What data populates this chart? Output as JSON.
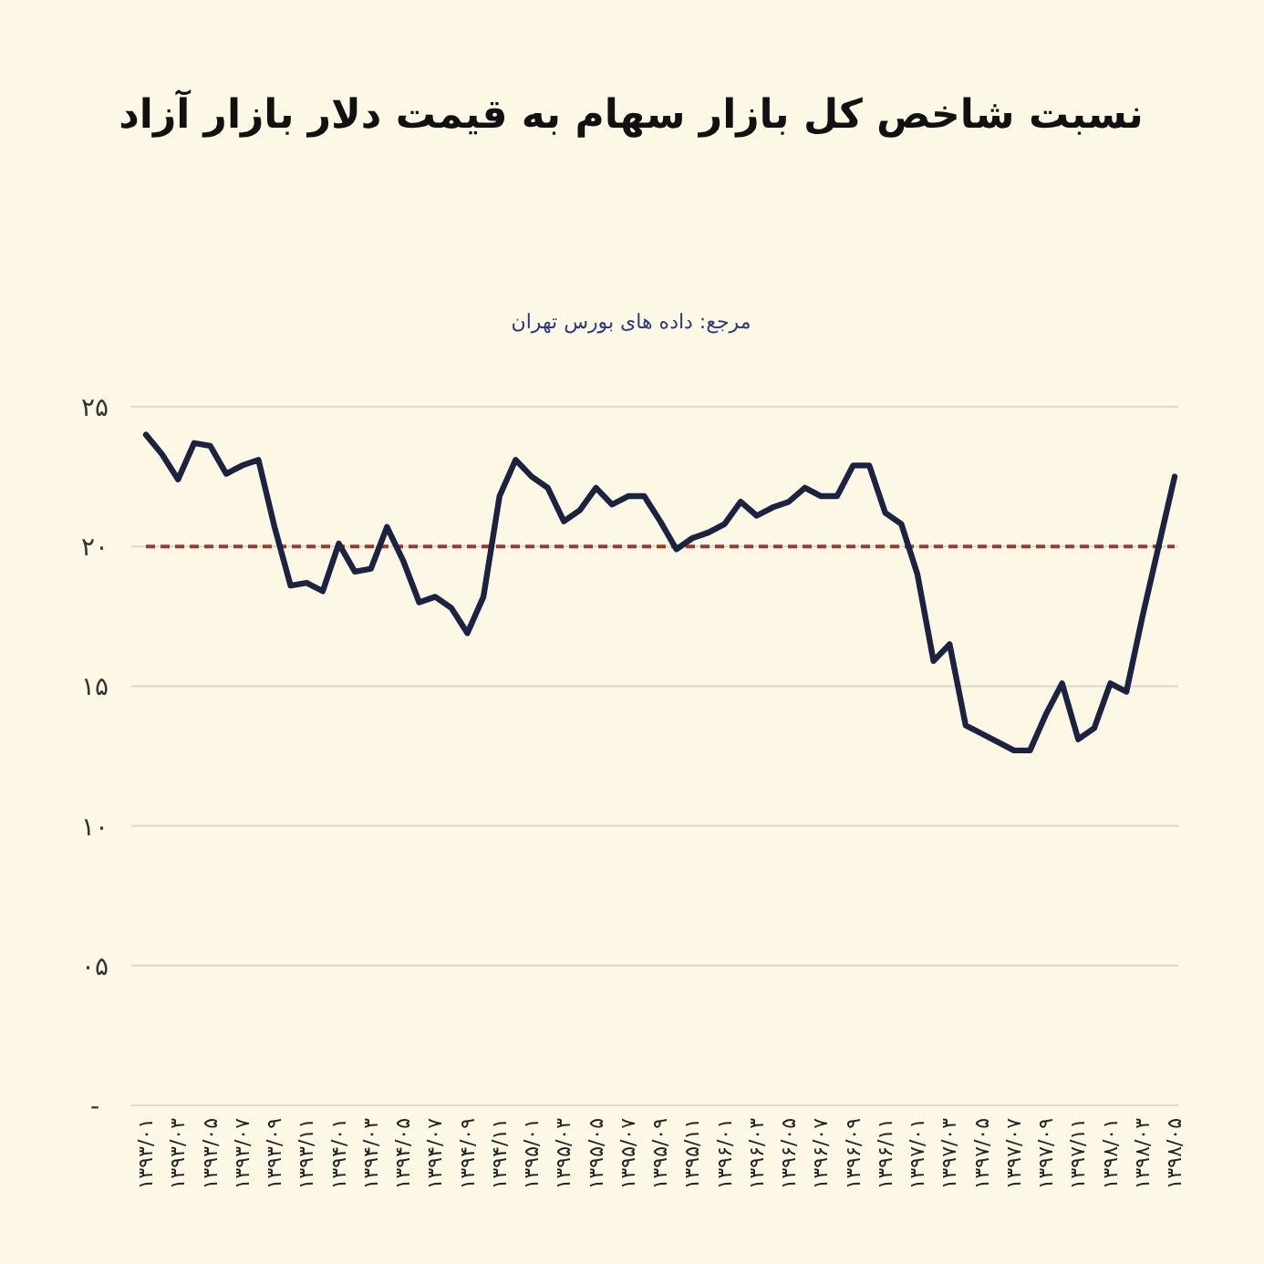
{
  "chart_data": {
    "type": "line",
    "title": "نسبت شاخص کل بازار سهام به قیمت دلار بازار آزاد",
    "annotations": [
      "مرجع: داده های بورس تهران"
    ],
    "categories": [
      "۱۳۹۳/۰۱",
      null,
      "۱۳۹۳/۰۳",
      null,
      "۱۳۹۳/۰۵",
      null,
      "۱۳۹۳/۰۷",
      null,
      "۱۳۹۳/۰۹",
      null,
      "۱۳۹۳/۱۱",
      null,
      "۱۳۹۴/۰۱",
      null,
      "۱۳۹۴/۰۳",
      null,
      "۱۳۹۴/۰۵",
      null,
      "۱۳۹۴/۰۷",
      null,
      "۱۳۹۴/۰۹",
      null,
      "۱۳۹۴/۱۱",
      null,
      "۱۳۹۵/۰۱",
      null,
      "۱۳۹۵/۰۳",
      null,
      "۱۳۹۵/۰۵",
      null,
      "۱۳۹۵/۰۷",
      null,
      "۱۳۹۵/۰۹",
      null,
      "۱۳۹۵/۱۱",
      null,
      "۱۳۹۶/۰۱",
      null,
      "۱۳۹۶/۰۳",
      null,
      "۱۳۹۶/۰۵",
      null,
      "۱۳۹۶/۰۷",
      null,
      "۱۳۹۶/۰۹",
      null,
      "۱۳۹۶/۱۱",
      null,
      "۱۳۹۷/۰۱",
      null,
      "۱۳۹۷/۰۳",
      null,
      "۱۳۹۷/۰۵",
      null,
      "۱۳۹۷/۰۷",
      null,
      "۱۳۹۷/۰۹",
      null,
      "۱۳۹۷/۱۱",
      null,
      "۱۳۹۸/۰۱",
      null,
      "۱۳۹۸/۰۳",
      null,
      "۱۳۹۸/۰۵"
    ],
    "values": [
      24.0,
      23.3,
      22.4,
      23.7,
      23.6,
      22.6,
      22.9,
      23.1,
      20.7,
      18.6,
      18.7,
      18.4,
      20.1,
      19.1,
      19.2,
      20.7,
      19.5,
      18.0,
      18.2,
      17.8,
      16.9,
      18.2,
      21.8,
      23.1,
      22.5,
      22.1,
      20.9,
      21.3,
      22.1,
      21.5,
      21.8,
      21.8,
      20.9,
      19.9,
      20.3,
      20.5,
      20.8,
      21.6,
      21.1,
      21.4,
      21.6,
      22.1,
      21.8,
      21.8,
      22.9,
      22.9,
      21.2,
      20.8,
      19.0,
      15.9,
      16.5,
      13.6,
      13.3,
      13.0,
      12.7,
      12.7,
      14.0,
      15.1,
      13.1,
      13.5,
      15.1,
      14.8,
      17.5,
      20.0,
      22.5
    ],
    "color": "#1b2340",
    "ylim": [
      0,
      25
    ],
    "yticks": [
      {
        "value": 0,
        "label": "-"
      },
      {
        "value": 5,
        "label": "۰۵"
      },
      {
        "value": 10,
        "label": "۱۰"
      },
      {
        "value": 15,
        "label": "۱۵"
      },
      {
        "value": 20,
        "label": "۲۰"
      },
      {
        "value": 25,
        "label": "۲۵"
      }
    ],
    "grid": "y",
    "ref_lines": [
      {
        "axis": "y",
        "value": 20,
        "color": "#9b3a2a",
        "line_style": "dashed"
      }
    ]
  }
}
